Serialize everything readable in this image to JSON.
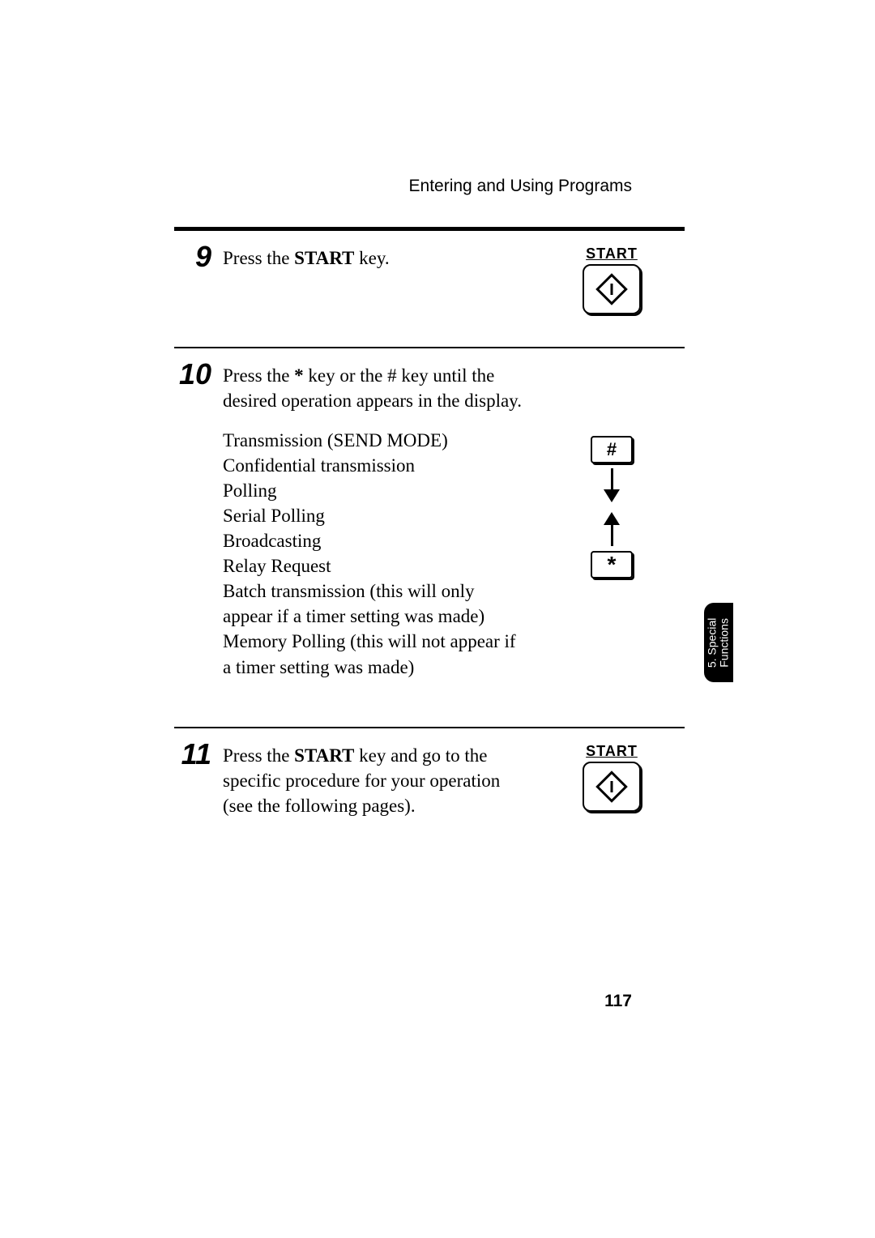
{
  "header": {
    "title": "Entering and Using Programs"
  },
  "steps": [
    {
      "num": "9",
      "paragraphs": [
        "Press the <b>START</b> key."
      ],
      "illus": {
        "type": "start",
        "label": "START"
      }
    },
    {
      "num": "10",
      "paragraphs": [
        "Press the <b>*</b>  key or the # key until the desired operation appears in the display.",
        "Transmission (SEND MODE)\nConfidential transmission\nPolling\nSerial Polling\nBroadcasting\nRelay Request\nBatch transmission (this will only appear if a timer setting was made)\nMemory Polling (this will not appear if a timer setting was made)"
      ],
      "illus": {
        "type": "keys",
        "hash": "#",
        "star": "*"
      }
    },
    {
      "num": "11",
      "paragraphs": [
        "Press the <b>START</b> key and go to the specific procedure for your operation (see the following pages)."
      ],
      "illus": {
        "type": "start",
        "label": "START"
      }
    }
  ],
  "sideTab": {
    "line1": "5. Special",
    "line2": "Functions"
  },
  "pageNumber": "117",
  "colors": {
    "text": "#000000",
    "bg": "#ffffff",
    "tabBg": "#000000",
    "tabText": "#ffffff"
  }
}
